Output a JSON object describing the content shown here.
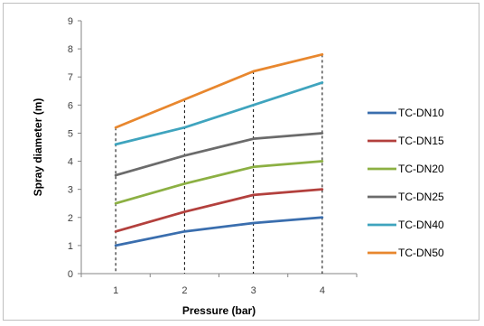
{
  "chart_data": {
    "type": "line",
    "x": [
      1,
      2,
      3,
      4
    ],
    "series": [
      {
        "name": "TC-DN10",
        "values": [
          1.0,
          1.5,
          1.8,
          2.0
        ],
        "color": "#3A6EAE"
      },
      {
        "name": "TC-DN15",
        "values": [
          1.5,
          2.2,
          2.8,
          3.0
        ],
        "color": "#B3403D"
      },
      {
        "name": "TC-DN20",
        "values": [
          2.5,
          3.2,
          3.8,
          4.0
        ],
        "color": "#8CB043"
      },
      {
        "name": "TC-DN25",
        "values": [
          3.5,
          4.2,
          4.8,
          5.0
        ],
        "color": "#6B6B6B"
      },
      {
        "name": "TC-DN40",
        "values": [
          4.6,
          5.2,
          6.0,
          6.8
        ],
        "color": "#3FA4BE"
      },
      {
        "name": "TC-DN50",
        "values": [
          5.2,
          6.2,
          7.2,
          7.8
        ],
        "color": "#E8872E"
      }
    ],
    "xlabel": "Pressure (bar)",
    "ylabel": "Spray diameter (m)",
    "xticks": [
      "1",
      "2",
      "3",
      "4"
    ],
    "yticks": [
      "0",
      "1",
      "2",
      "3",
      "4",
      "5",
      "6",
      "7",
      "8",
      "9"
    ],
    "ylim": [
      0,
      9
    ],
    "grid": false,
    "drop_lines": true,
    "legend_position": "right"
  }
}
